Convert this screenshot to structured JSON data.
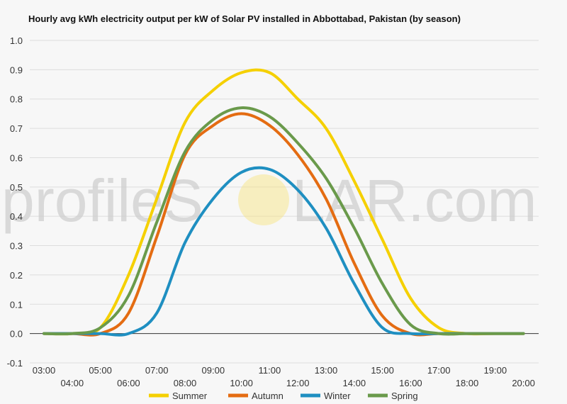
{
  "chart_data": {
    "type": "line",
    "title": "Hourly avg kWh electricity output per kW of Solar PV installed in Abbottabad, Pakistan (by season)",
    "xlabel": "",
    "ylabel": "",
    "x": [
      "03:00",
      "04:00",
      "05:00",
      "06:00",
      "07:00",
      "08:00",
      "09:00",
      "10:00",
      "11:00",
      "12:00",
      "13:00",
      "14:00",
      "15:00",
      "16:00",
      "17:00",
      "18:00",
      "19:00",
      "20:00"
    ],
    "ylim": [
      -0.1,
      1.0
    ],
    "yticks": [
      -0.1,
      0.0,
      0.1,
      0.2,
      0.3,
      0.4,
      0.5,
      0.6,
      0.7,
      0.8,
      0.9,
      1.0
    ],
    "grid": true,
    "legend_position": "bottom",
    "series": [
      {
        "name": "Summer",
        "color": "#f5d000",
        "values": [
          0.0,
          0.0,
          0.02,
          0.2,
          0.46,
          0.72,
          0.83,
          0.89,
          0.89,
          0.8,
          0.7,
          0.52,
          0.32,
          0.12,
          0.02,
          0.0,
          0.0,
          0.0
        ]
      },
      {
        "name": "Autumn",
        "color": "#e46c12",
        "values": [
          0.0,
          0.0,
          0.0,
          0.07,
          0.33,
          0.61,
          0.71,
          0.75,
          0.71,
          0.61,
          0.46,
          0.24,
          0.06,
          0.0,
          0.0,
          0.0,
          0.0,
          0.0
        ]
      },
      {
        "name": "Winter",
        "color": "#1f8fc1",
        "values": [
          0.0,
          0.0,
          0.0,
          0.0,
          0.07,
          0.31,
          0.46,
          0.55,
          0.56,
          0.49,
          0.36,
          0.17,
          0.02,
          0.0,
          0.0,
          0.0,
          0.0,
          0.0
        ]
      },
      {
        "name": "Spring",
        "color": "#6a9a4b",
        "values": [
          0.0,
          0.0,
          0.02,
          0.13,
          0.38,
          0.62,
          0.73,
          0.77,
          0.74,
          0.65,
          0.53,
          0.36,
          0.17,
          0.03,
          0.0,
          0.0,
          0.0,
          0.0
        ]
      }
    ]
  },
  "watermark": {
    "before": "profileS",
    "after": "LAR.com"
  }
}
